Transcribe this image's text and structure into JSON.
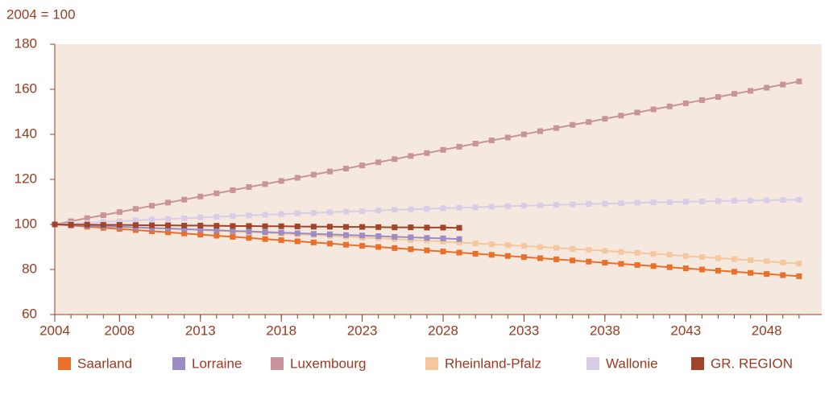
{
  "chart_data": {
    "type": "line",
    "y_label": "2004 = 100",
    "x": [
      2004,
      2005,
      2006,
      2007,
      2008,
      2009,
      2010,
      2011,
      2012,
      2013,
      2014,
      2015,
      2016,
      2017,
      2018,
      2019,
      2020,
      2021,
      2022,
      2023,
      2024,
      2025,
      2026,
      2027,
      2028,
      2029,
      2030,
      2031,
      2032,
      2033,
      2034,
      2035,
      2036,
      2037,
      2038,
      2039,
      2040,
      2041,
      2042,
      2043,
      2044,
      2045,
      2046,
      2047,
      2048,
      2049,
      2050
    ],
    "xlim": [
      2004,
      2051.4
    ],
    "xticks": [
      2004,
      2008,
      2013,
      2018,
      2023,
      2028,
      2033,
      2038,
      2043,
      2048
    ],
    "ylim": [
      60,
      180
    ],
    "yticks": [
      60,
      80,
      100,
      120,
      140,
      160,
      180
    ],
    "legend": "bottom",
    "series": [
      {
        "name": "Saarland",
        "color": "#e8702a",
        "values": [
          100,
          99.5,
          99,
          98.5,
          98,
          97.5,
          97,
          96.5,
          96,
          95.5,
          95,
          94.5,
          94,
          93.5,
          93,
          92.5,
          92,
          91.5,
          91,
          90.5,
          90,
          89.5,
          89,
          88.5,
          88,
          87.5,
          87,
          86.5,
          86,
          85.5,
          85,
          84.5,
          84,
          83.5,
          83,
          82.5,
          82,
          81.5,
          81,
          80.5,
          80,
          79.5,
          79,
          78.5,
          78,
          77.5,
          77
        ]
      },
      {
        "name": "Lorraine",
        "color": "#9b8dc4",
        "values": [
          100,
          99.7,
          99.5,
          99.2,
          99,
          98.7,
          98.4,
          98.2,
          97.9,
          97.7,
          97.4,
          97.1,
          96.9,
          96.6,
          96.4,
          96.1,
          95.8,
          95.6,
          95.3,
          95.1,
          94.8,
          94.5,
          94.3,
          94,
          93.8,
          93.5,
          null,
          null,
          null,
          null,
          null,
          null,
          null,
          null,
          null,
          null,
          null,
          null,
          null,
          null,
          null,
          null,
          null,
          null,
          null,
          null,
          null
        ]
      },
      {
        "name": "Luxembourg",
        "color": "#c9939a",
        "values": [
          100,
          101.4,
          102.8,
          104.1,
          105.5,
          106.9,
          108.3,
          109.7,
          111,
          112.4,
          113.8,
          115.2,
          116.6,
          117.9,
          119.3,
          120.7,
          122.1,
          123.5,
          124.8,
          126.2,
          127.6,
          129,
          130.4,
          131.7,
          133.1,
          134.5,
          135.9,
          137.3,
          138.6,
          140,
          141.4,
          142.8,
          144.2,
          145.5,
          146.9,
          148.3,
          149.7,
          151.1,
          152.4,
          153.8,
          155.2,
          156.6,
          158,
          159.3,
          160.7,
          162.1,
          163.5
        ]
      },
      {
        "name": "Rheinland-Pfalz",
        "color": "#f5c79e",
        "values": [
          100,
          99.7,
          99.5,
          99.2,
          98.9,
          98.7,
          98.4,
          98.1,
          97.8,
          97.5,
          97.2,
          96.9,
          96.6,
          96.3,
          95.9,
          95.6,
          95.3,
          94.9,
          94.6,
          94.2,
          93.9,
          93.5,
          93.1,
          92.8,
          92.4,
          92,
          91.6,
          91.2,
          90.8,
          90.4,
          90,
          89.6,
          89.1,
          88.7,
          88.3,
          87.8,
          87.4,
          86.9,
          86.5,
          86,
          85.5,
          85,
          84.6,
          84.1,
          83.6,
          83.1,
          82.6
        ]
      },
      {
        "name": "Wallonie",
        "color": "#d9cce6",
        "values": [
          100,
          100.4,
          100.7,
          101.1,
          101.4,
          101.8,
          102.1,
          102.4,
          102.7,
          103.1,
          103.4,
          103.7,
          104,
          104.3,
          104.6,
          104.9,
          105.1,
          105.4,
          105.7,
          105.9,
          106.2,
          106.5,
          106.7,
          106.9,
          107.2,
          107.4,
          107.6,
          107.9,
          108.1,
          108.3,
          108.5,
          108.7,
          108.9,
          109.1,
          109.2,
          109.4,
          109.6,
          109.8,
          109.9,
          110.1,
          110.2,
          110.4,
          110.5,
          110.6,
          110.7,
          110.9,
          111
        ]
      },
      {
        "name": "GR. REGION",
        "color": "#a0442a",
        "values": [
          100,
          99.9,
          99.9,
          99.8,
          99.8,
          99.7,
          99.6,
          99.6,
          99.5,
          99.5,
          99.4,
          99.3,
          99.3,
          99.2,
          99.2,
          99.1,
          99,
          99,
          98.9,
          98.9,
          98.8,
          98.7,
          98.7,
          98.6,
          98.6,
          98.5,
          null,
          null,
          null,
          null,
          null,
          null,
          null,
          null,
          null,
          null,
          null,
          null,
          null,
          null,
          null,
          null,
          null,
          null,
          null,
          null,
          null
        ]
      }
    ]
  }
}
